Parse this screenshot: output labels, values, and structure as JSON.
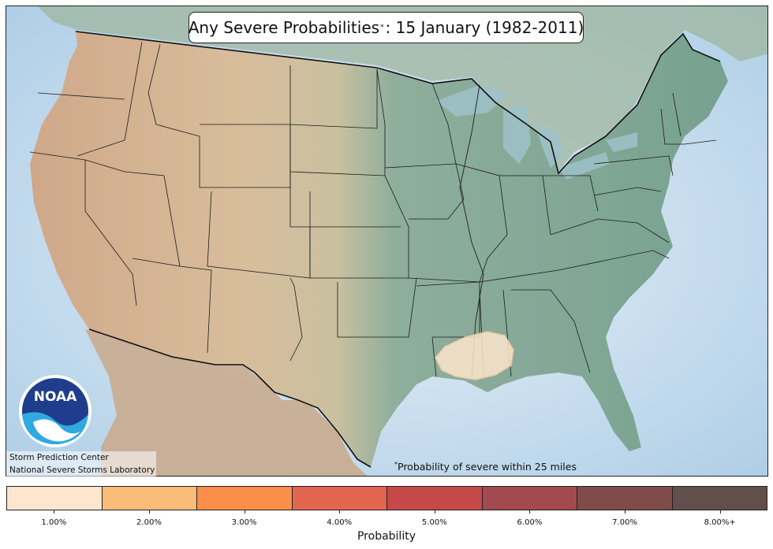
{
  "title": {
    "main": "Any Severe Probabilities",
    "marker": "*",
    "date_part": ": 15 January (1982-2011)"
  },
  "logo": {
    "text": "NOAA",
    "icon": "noaa-logo-icon"
  },
  "credits": {
    "line1": "Storm Prediction Center",
    "line2": "National Severe Storms Laboratory"
  },
  "footnote": {
    "marker": "*",
    "text": "Probability of severe within 25 miles"
  },
  "colorbar": {
    "label": "Probability",
    "entries": [
      {
        "label": "1.00%",
        "color": "#fde6cd"
      },
      {
        "label": "2.00%",
        "color": "#fbbb79"
      },
      {
        "label": "3.00%",
        "color": "#fa8f4a"
      },
      {
        "label": "4.00%",
        "color": "#e2654f"
      },
      {
        "label": "5.00%",
        "color": "#c64949"
      },
      {
        "label": "6.00%",
        "color": "#a34a4e"
      },
      {
        "label": "7.00%",
        "color": "#7f4b4b"
      },
      {
        "label": "8.00%+",
        "color": "#624f4b"
      }
    ]
  },
  "probability_areas": [
    {
      "region": "Lower Mississippi Valley (LA/MS)",
      "level": "1.00%"
    }
  ],
  "colors": {
    "ocean": "#cfe3f2",
    "land_west": "#d4b594",
    "land_east": "#7fa294",
    "boundary": "#111111"
  }
}
